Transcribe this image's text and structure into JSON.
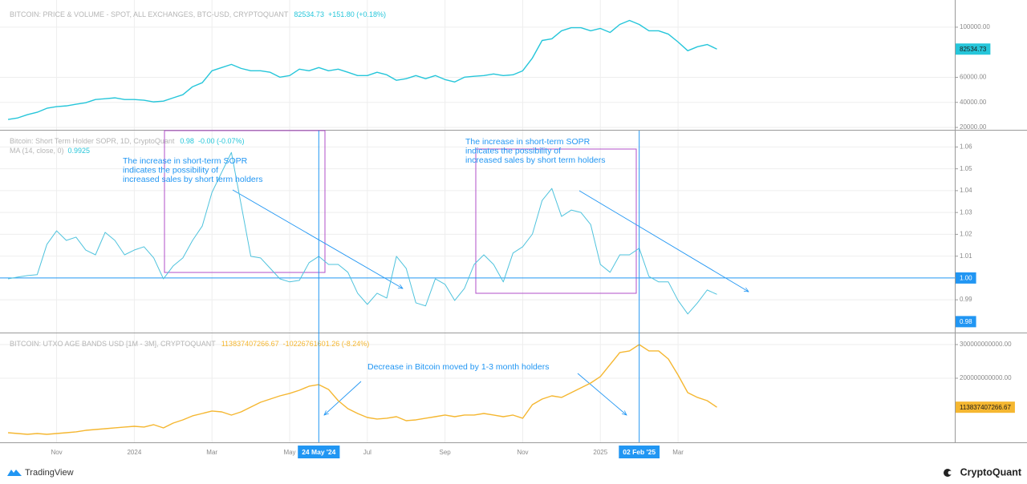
{
  "chart_data": [
    {
      "type": "line",
      "title": "BITCOIN: PRICE & VOLUME - SPOT, ALL EXCHANGES, BTC-USD, CRYPTOQUANT",
      "header_value": 82534.73,
      "header_change": "+151.80 (+0.18%)",
      "color": "#26c6da",
      "values": [
        26400,
        27600,
        30200,
        32100,
        35300,
        36600,
        37200,
        38500,
        39700,
        42300,
        42900,
        43600,
        42300,
        42300,
        41700,
        40400,
        41000,
        43600,
        46100,
        52500,
        55700,
        65200,
        67800,
        70300,
        67100,
        65200,
        65200,
        64000,
        60100,
        61400,
        66500,
        65200,
        67800,
        65200,
        66500,
        64000,
        61400,
        61400,
        64000,
        62000,
        57600,
        58900,
        61400,
        58900,
        61400,
        58200,
        56300,
        60100,
        60800,
        61400,
        62700,
        61400,
        62000,
        65200,
        75400,
        89400,
        90700,
        97100,
        99600,
        99600,
        97100,
        99000,
        95800,
        102200,
        105400,
        102200,
        97100,
        97100,
        94500,
        88200,
        81200,
        84400,
        86200,
        82534.73,
        null,
        null,
        null,
        null,
        null,
        null,
        null,
        null,
        null,
        null,
        null,
        null,
        null,
        null,
        null,
        null,
        null,
        null,
        null,
        null,
        null,
        null,
        null,
        null
      ],
      "ylim": [
        18100,
        118500
      ],
      "yticks": [
        {
          "value": 20000,
          "label": "20000.00"
        },
        {
          "value": 40000,
          "label": "40000.00"
        },
        {
          "value": 60000,
          "label": "60000.00"
        },
        {
          "value": 100000,
          "label": "100000.00"
        }
      ],
      "grid": true
    },
    {
      "type": "line",
      "title": "Bitcoin: Short Term Holder SOPR, 1D, CryptoQuant",
      "header_value": 0.98,
      "header_change": "-0.00 (-0.07%)",
      "ma_label": "MA (14, close, 0)",
      "ma_value": 0.9925,
      "color": "#4fc3dd",
      "values": [
        0.9996,
        1.0004,
        1.0011,
        1.0015,
        1.0154,
        1.0216,
        1.0172,
        1.0187,
        1.0128,
        1.0106,
        1.0209,
        1.0172,
        1.0106,
        1.0128,
        1.0143,
        1.0092,
        0.9996,
        1.0055,
        1.0092,
        1.0172,
        1.0238,
        1.0392,
        1.0484,
        1.0575,
        1.0337,
        1.0099,
        1.0092,
        1.0044,
        0.9996,
        0.9982,
        0.9989,
        1.007,
        1.0099,
        1.0062,
        1.0062,
        1.0026,
        0.993,
        0.9879,
        0.993,
        0.9908,
        1.0099,
        1.0044,
        0.9886,
        0.9872,
        0.9996,
        0.9971,
        0.9897,
        0.9952,
        1.0062,
        1.0106,
        1.0062,
        0.9982,
        1.0114,
        1.0143,
        1.0201,
        1.0355,
        1.041,
        1.0282,
        1.0311,
        1.03,
        1.0245,
        1.0062,
        1.0026,
        1.0106,
        1.0106,
        1.0136,
        1.0007,
        0.9982,
        0.9982,
        0.9897,
        0.9835,
        0.9886,
        0.9945,
        0.9925,
        null,
        null,
        null,
        null,
        null,
        null,
        null,
        null,
        null,
        null,
        null,
        null,
        null,
        null,
        null,
        null,
        null,
        null,
        null,
        null,
        null,
        null,
        null,
        null
      ],
      "ylim": [
        0.975,
        1.0675
      ],
      "yticks": [
        0.99,
        1.01,
        1.02,
        1.03,
        1.04,
        1.05,
        1.06
      ],
      "hline": {
        "value": 1,
        "label": "1.00"
      },
      "annotations": [
        {
          "lines": [
            "The increase in  short-term SOPR",
            "indicates the possibility of",
            " increased sales by short term holders"
          ]
        },
        {
          "lines": [
            "The increase in  short-term SOPR",
            "indicates the possibility of",
            " increased sales by short term holders"
          ]
        }
      ],
      "grid": true
    },
    {
      "type": "line",
      "title": "BITCOIN: UTXO AGE BANDS USD [1M - 3M], CRYPTOQUANT",
      "header_value": 113837407266.67,
      "header_change": "-10226761601.26 (-8.24%)",
      "color": "#f5b731",
      "values": [
        38100000000,
        35700000000,
        33300000000,
        35700000000,
        33300000000,
        35700000000,
        38100000000,
        40500000000,
        45200000000,
        47600000000,
        50000000000,
        52400000000,
        54800000000,
        57100000000,
        54800000000,
        61900000000,
        52400000000,
        66700000000,
        76200000000,
        88100000000,
        95200000000,
        102400000000,
        100000000000,
        90500000000,
        100000000000,
        114300000000,
        128600000000,
        138100000000,
        147600000000,
        154800000000,
        164300000000,
        176200000000,
        181000000000,
        166700000000,
        133300000000,
        109500000000,
        95200000000,
        83300000000,
        78600000000,
        81000000000,
        85700000000,
        73800000000,
        76200000000,
        81000000000,
        85700000000,
        90500000000,
        85700000000,
        90500000000,
        90500000000,
        95200000000,
        90500000000,
        85700000000,
        90500000000,
        81000000000,
        121400000000,
        138100000000,
        147600000000,
        142900000000,
        157100000000,
        171400000000,
        185700000000,
        204800000000,
        240500000000,
        276200000000,
        281000000000,
        300000000000,
        281000000000,
        281000000000,
        257100000000,
        209500000000,
        157100000000,
        142900000000,
        133300000000,
        113837407266.67,
        null,
        null,
        null,
        null,
        null,
        null,
        null,
        null,
        null,
        null,
        null,
        null,
        null,
        null,
        null,
        null,
        null,
        null,
        null,
        null,
        null,
        null,
        null,
        null
      ],
      "ylim": [
        9500000000,
        333300000000
      ],
      "yticks": [
        {
          "value": 200000000000,
          "label": "200000000000.00"
        },
        {
          "value": 300000000000,
          "label": "300000000000.00"
        }
      ],
      "annotations": [
        {
          "lines": [
            "Decrease in Bitcoin moved by 1-3 month holders"
          ]
        }
      ],
      "categories": [
        null,
        null,
        null,
        null,
        null,
        "Nov",
        null,
        null,
        null,
        null,
        null,
        null,
        null,
        "2024",
        null,
        null,
        null,
        null,
        null,
        null,
        null,
        "Mar",
        null,
        null,
        null,
        null,
        null,
        null,
        null,
        "May",
        null,
        null,
        "24 May '24",
        null,
        null,
        null,
        null,
        "Jul",
        null,
        null,
        null,
        null,
        null,
        null,
        null,
        "Sep",
        null,
        null,
        null,
        null,
        null,
        null,
        null,
        "Nov",
        null,
        null,
        null,
        null,
        null,
        null,
        null,
        "2025",
        null,
        null,
        null,
        "02 Feb '25",
        null,
        null,
        null,
        "Mar",
        null,
        null,
        null,
        null,
        null,
        null,
        null,
        null,
        null,
        null,
        null,
        null,
        null,
        null,
        null,
        null,
        null,
        null,
        null,
        null,
        null,
        null,
        null,
        null,
        null,
        null,
        null,
        null
      ],
      "marker_categories": [
        "24 May '24",
        "02 Feb '25"
      ],
      "grid": true
    }
  ],
  "footer": {
    "left": "TradingView",
    "right": "CryptoQuant"
  }
}
